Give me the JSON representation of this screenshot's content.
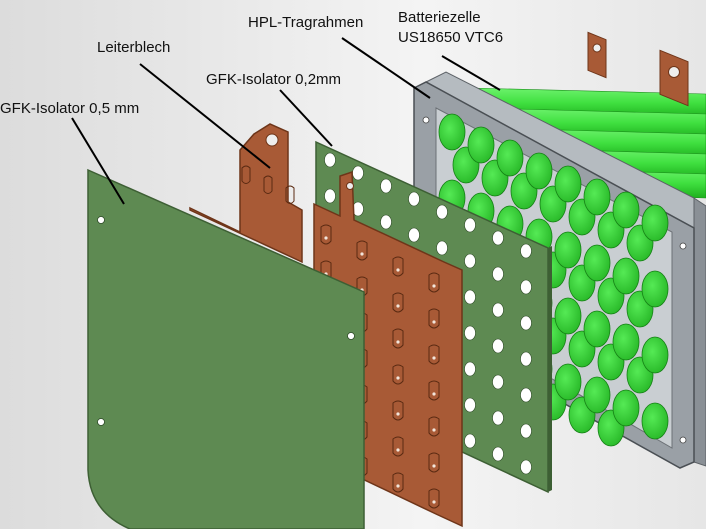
{
  "figure": {
    "callouts": [
      {
        "id": "gfk-isolator-05",
        "text": "GFK-Isolator 0,5 mm"
      },
      {
        "id": "leiterblech",
        "text": "Leiterblech"
      },
      {
        "id": "gfk-isolator-02",
        "text": "GFK-Isolator 0,2mm"
      },
      {
        "id": "hpl-tragrahmen",
        "text": "HPL-Tragrahmen"
      },
      {
        "id": "batteriezelle-1",
        "text": "Batteriezelle"
      },
      {
        "id": "batteriezelle-2",
        "text": "US18650 VTC6"
      }
    ]
  },
  "colors": {
    "background": "#e8e8e8",
    "gfk_sheet": "#5e8a52",
    "gfk_sheet_edge": "#3d5f34",
    "copper": "#a85a36",
    "copper_edge": "#6e3519",
    "hpl_frame": "#9aa0a6",
    "cell_green": "#3fe03f",
    "cell_dark": "#22a522",
    "leader": "#000000"
  }
}
